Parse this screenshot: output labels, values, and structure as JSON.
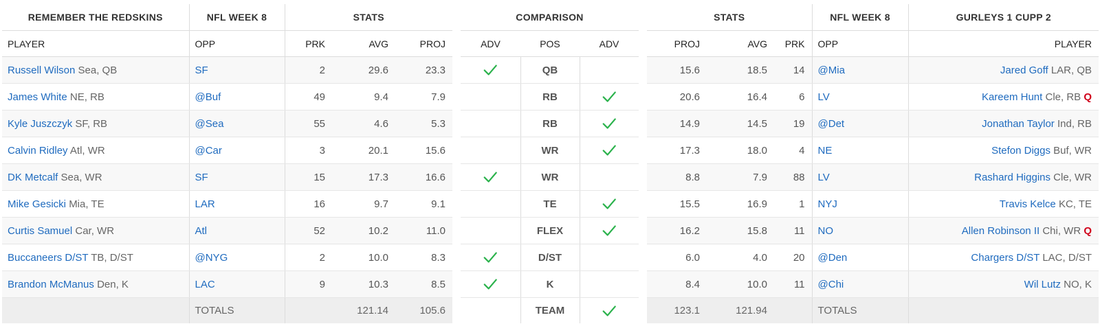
{
  "left_team": {
    "name": "REMEMBER THE REDSKINS",
    "week_header": "NFL WEEK 8",
    "stats_header": "STATS",
    "columns": {
      "player": "PLAYER",
      "opp": "OPP",
      "prk": "PRK",
      "avg": "AVG",
      "proj": "PROJ"
    },
    "rows": [
      {
        "name": "Russell Wilson",
        "meta": "Sea, QB",
        "q": "",
        "opp": "SF",
        "prk": "2",
        "avg": "29.6",
        "proj": "23.3"
      },
      {
        "name": "James White",
        "meta": "NE, RB",
        "q": "",
        "opp": "@Buf",
        "prk": "49",
        "avg": "9.4",
        "proj": "7.9"
      },
      {
        "name": "Kyle Juszczyk",
        "meta": "SF, RB",
        "q": "",
        "opp": "@Sea",
        "prk": "55",
        "avg": "4.6",
        "proj": "5.3"
      },
      {
        "name": "Calvin Ridley",
        "meta": "Atl, WR",
        "q": "",
        "opp": "@Car",
        "prk": "3",
        "avg": "20.1",
        "proj": "15.6"
      },
      {
        "name": "DK Metcalf",
        "meta": "Sea, WR",
        "q": "",
        "opp": "SF",
        "prk": "15",
        "avg": "17.3",
        "proj": "16.6"
      },
      {
        "name": "Mike Gesicki",
        "meta": "Mia, TE",
        "q": "",
        "opp": "LAR",
        "prk": "16",
        "avg": "9.7",
        "proj": "9.1"
      },
      {
        "name": "Curtis Samuel",
        "meta": "Car, WR",
        "q": "",
        "opp": "Atl",
        "prk": "52",
        "avg": "10.2",
        "proj": "11.0"
      },
      {
        "name": "Buccaneers D/ST",
        "meta": "TB, D/ST",
        "q": "",
        "opp": "@NYG",
        "prk": "2",
        "avg": "10.0",
        "proj": "8.3"
      },
      {
        "name": "Brandon McManus",
        "meta": "Den, K",
        "q": "",
        "opp": "LAC",
        "prk": "9",
        "avg": "10.3",
        "proj": "8.5"
      }
    ],
    "totals": {
      "label": "TOTALS",
      "avg": "121.14",
      "proj": "105.6"
    }
  },
  "comparison": {
    "header": "COMPARISON",
    "adv_label": "ADV",
    "pos_label": "POS",
    "rows": [
      {
        "pos": "QB",
        "left_adv": true,
        "right_adv": false
      },
      {
        "pos": "RB",
        "left_adv": false,
        "right_adv": true
      },
      {
        "pos": "RB",
        "left_adv": false,
        "right_adv": true
      },
      {
        "pos": "WR",
        "left_adv": false,
        "right_adv": true
      },
      {
        "pos": "WR",
        "left_adv": true,
        "right_adv": false
      },
      {
        "pos": "TE",
        "left_adv": false,
        "right_adv": true
      },
      {
        "pos": "FLEX",
        "left_adv": false,
        "right_adv": true
      },
      {
        "pos": "D/ST",
        "left_adv": true,
        "right_adv": false
      },
      {
        "pos": "K",
        "left_adv": true,
        "right_adv": false
      }
    ],
    "team": {
      "label": "TEAM",
      "left_adv": false,
      "right_adv": true
    },
    "check_color": "#2bb24c"
  },
  "right_team": {
    "name": "GURLEYS 1 CUPP 2",
    "week_header": "NFL WEEK 8",
    "stats_header": "STATS",
    "columns": {
      "player": "PLAYER",
      "opp": "OPP",
      "prk": "PRK",
      "avg": "AVG",
      "proj": "PROJ"
    },
    "rows": [
      {
        "name": "Jared Goff",
        "meta": "LAR, QB",
        "q": "",
        "opp": "@Mia",
        "prk": "14",
        "avg": "18.5",
        "proj": "15.6"
      },
      {
        "name": "Kareem Hunt",
        "meta": "Cle, RB",
        "q": "Q",
        "opp": "LV",
        "prk": "6",
        "avg": "16.4",
        "proj": "20.6"
      },
      {
        "name": "Jonathan Taylor",
        "meta": "Ind, RB",
        "q": "",
        "opp": "@Det",
        "prk": "19",
        "avg": "14.5",
        "proj": "14.9"
      },
      {
        "name": "Stefon Diggs",
        "meta": "Buf, WR",
        "q": "",
        "opp": "NE",
        "prk": "4",
        "avg": "18.0",
        "proj": "17.3"
      },
      {
        "name": "Rashard Higgins",
        "meta": "Cle, WR",
        "q": "",
        "opp": "LV",
        "prk": "88",
        "avg": "7.9",
        "proj": "8.8"
      },
      {
        "name": "Travis Kelce",
        "meta": "KC, TE",
        "q": "",
        "opp": "NYJ",
        "prk": "1",
        "avg": "16.9",
        "proj": "15.5"
      },
      {
        "name": "Allen Robinson II",
        "meta": "Chi, WR",
        "q": "Q",
        "opp": "NO",
        "prk": "11",
        "avg": "15.8",
        "proj": "16.2"
      },
      {
        "name": "Chargers D/ST",
        "meta": "LAC, D/ST",
        "q": "",
        "opp": "@Den",
        "prk": "20",
        "avg": "4.0",
        "proj": "6.0"
      },
      {
        "name": "Wil Lutz",
        "meta": "NO, K",
        "q": "",
        "opp": "@Chi",
        "prk": "11",
        "avg": "10.0",
        "proj": "8.4"
      }
    ],
    "totals": {
      "label": "TOTALS",
      "avg": "121.94",
      "proj": "123.1"
    }
  }
}
